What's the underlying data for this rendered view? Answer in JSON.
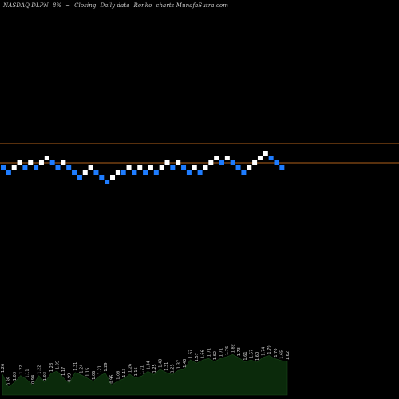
{
  "header": {
    "symbol": "NASDAQ DLPN",
    "change": "8%",
    "arrow": "~",
    "mode": "Closing",
    "frequency": "Daily data",
    "type": "Renko",
    "source": "charts MunafaSutra.com"
  },
  "chart_data": {
    "type": "renko",
    "up_color": "#ffffff",
    "down_color": "#1e7cff",
    "reference_line_color": "#b0601a",
    "volume_color": "#0b2a0b",
    "bricks": [
      {
        "d": "down",
        "lvl": 0
      },
      {
        "d": "down",
        "lvl": -1
      },
      {
        "d": "up",
        "lvl": 0
      },
      {
        "d": "up",
        "lvl": 1
      },
      {
        "d": "down",
        "lvl": 0
      },
      {
        "d": "up",
        "lvl": 1
      },
      {
        "d": "down",
        "lvl": 0
      },
      {
        "d": "up",
        "lvl": 1
      },
      {
        "d": "up",
        "lvl": 2
      },
      {
        "d": "down",
        "lvl": 1
      },
      {
        "d": "down",
        "lvl": 0
      },
      {
        "d": "up",
        "lvl": 1
      },
      {
        "d": "down",
        "lvl": 0
      },
      {
        "d": "down",
        "lvl": -1
      },
      {
        "d": "down",
        "lvl": -2
      },
      {
        "d": "up",
        "lvl": -1
      },
      {
        "d": "up",
        "lvl": 0
      },
      {
        "d": "down",
        "lvl": -1
      },
      {
        "d": "down",
        "lvl": -2
      },
      {
        "d": "down",
        "lvl": -3
      },
      {
        "d": "up",
        "lvl": -2
      },
      {
        "d": "up",
        "lvl": -1
      },
      {
        "d": "down",
        "lvl": -1
      },
      {
        "d": "up",
        "lvl": 0
      },
      {
        "d": "down",
        "lvl": -1
      },
      {
        "d": "up",
        "lvl": 0
      },
      {
        "d": "down",
        "lvl": -1
      },
      {
        "d": "up",
        "lvl": 0
      },
      {
        "d": "down",
        "lvl": -1
      },
      {
        "d": "up",
        "lvl": 0
      },
      {
        "d": "up",
        "lvl": 1
      },
      {
        "d": "down",
        "lvl": 0
      },
      {
        "d": "up",
        "lvl": 1
      },
      {
        "d": "down",
        "lvl": 0
      },
      {
        "d": "down",
        "lvl": -1
      },
      {
        "d": "up",
        "lvl": 0
      },
      {
        "d": "down",
        "lvl": -1
      },
      {
        "d": "up",
        "lvl": 0
      },
      {
        "d": "up",
        "lvl": 1
      },
      {
        "d": "up",
        "lvl": 2
      },
      {
        "d": "down",
        "lvl": 1
      },
      {
        "d": "up",
        "lvl": 2
      },
      {
        "d": "down",
        "lvl": 1
      },
      {
        "d": "down",
        "lvl": 0
      },
      {
        "d": "down",
        "lvl": -1
      },
      {
        "d": "up",
        "lvl": 0
      },
      {
        "d": "up",
        "lvl": 1
      },
      {
        "d": "up",
        "lvl": 2
      },
      {
        "d": "up",
        "lvl": 3
      },
      {
        "d": "down",
        "lvl": 2
      },
      {
        "d": "down",
        "lvl": 1
      },
      {
        "d": "down",
        "lvl": 0
      }
    ],
    "volume_labels": [
      "1.26",
      "0.89",
      "1.03",
      "1.22",
      "1.11",
      "0.94",
      "1.22",
      "1.03",
      "1.28",
      "1.35",
      "1.17",
      "0.99",
      "1.31",
      "1.24",
      "1.15",
      "1.06",
      "1.21",
      "1.29",
      "0.95",
      "1.06",
      "1.13",
      "1.26",
      "1.16",
      "1.21",
      "1.34",
      "1.25",
      "1.40",
      "1.31",
      "1.25",
      "1.37",
      "1.40",
      "1.67",
      "1.57",
      "1.66",
      "1.71",
      "1.62",
      "1.71",
      "1.76",
      "1.82",
      "1.73",
      "1.61",
      "1.67",
      "1.60",
      "1.74",
      "1.79",
      "1.70",
      "1.65",
      "1.62"
    ]
  }
}
